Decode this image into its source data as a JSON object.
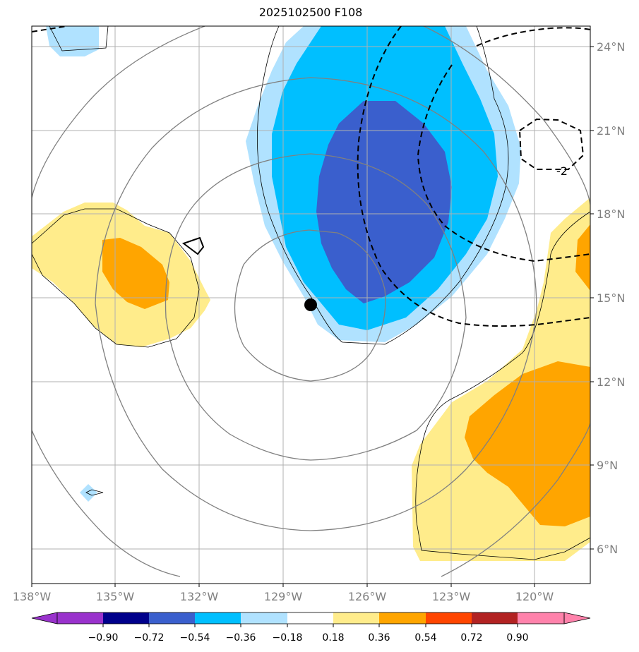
{
  "title": "2025102500 F108",
  "map": {
    "lon_labels": [
      "138°W",
      "135°W",
      "132°W",
      "129°W",
      "126°W",
      "123°W",
      "120°W"
    ],
    "lat_labels": [
      "24°N",
      "21°N",
      "18°N",
      "15°N",
      "12°N",
      "9°N",
      "6°N"
    ],
    "contour_label": "-2",
    "storm_center": {
      "lon": -128.1,
      "lat": 14.8
    }
  },
  "colorbar": {
    "ticks": [
      "−0.90",
      "−0.72",
      "−0.54",
      "−0.36",
      "−0.18",
      "0.18",
      "0.36",
      "0.54",
      "0.72",
      "0.90"
    ],
    "colors": [
      "#9932cc",
      "#00008b",
      "#3a5fcd",
      "#00bfff",
      "#b0e2ff",
      "#ffffff",
      "#ffec8b",
      "#ffa500",
      "#ff4500",
      "#b22222",
      "#ff82ab"
    ]
  }
}
